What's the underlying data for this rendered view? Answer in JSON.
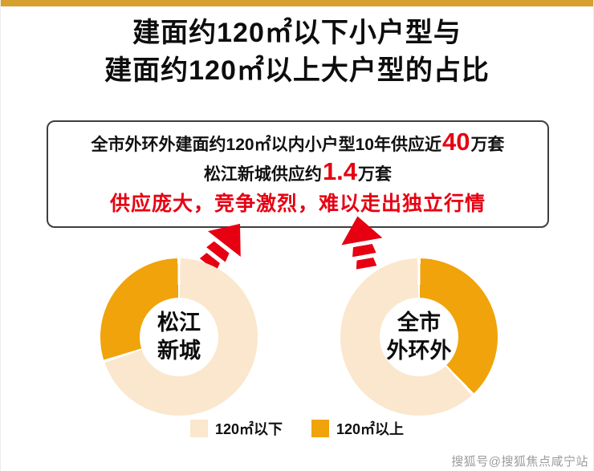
{
  "page": {
    "title_line1": "建面约120㎡以下小户型与",
    "title_line2": "建面约120㎡以上大户型的占比",
    "watermark": "搜狐号@搜狐焦点咸宁站"
  },
  "colors": {
    "orange": "#F0A30A",
    "cream": "#FAE7CD",
    "red": "#E60012",
    "gold_bar": "#D6A02F"
  },
  "callout": {
    "line1_prefix": "全市外环外建面约120㎡以内小户型10年供应近",
    "line1_highlight": "40",
    "line1_suffix": "万套",
    "line2_prefix": "松江新城供应约",
    "line2_highlight": "1.4",
    "line2_suffix": "万套",
    "line3": "供应庞大，竞争激烈，难以走出独立行情"
  },
  "chart_data": [
    {
      "type": "pie",
      "title": "松江新城",
      "label_display": "松江\n新城",
      "legend_position": "bottom",
      "slices": [
        {
          "name": "120㎡以下",
          "value": 70,
          "color_key": "cream"
        },
        {
          "name": "120㎡以上",
          "value": 30,
          "color_key": "orange"
        }
      ]
    },
    {
      "type": "pie",
      "title": "全市外环外",
      "label_display": "全市\n外环外",
      "legend_position": "bottom",
      "slices": [
        {
          "name": "120㎡以上",
          "value": 38,
          "color_key": "orange"
        },
        {
          "name": "120㎡以下",
          "value": 62,
          "color_key": "cream"
        }
      ]
    }
  ],
  "legend": [
    {
      "label": "120㎡以下",
      "color_key": "cream"
    },
    {
      "label": "120㎡以上",
      "color_key": "orange"
    }
  ]
}
